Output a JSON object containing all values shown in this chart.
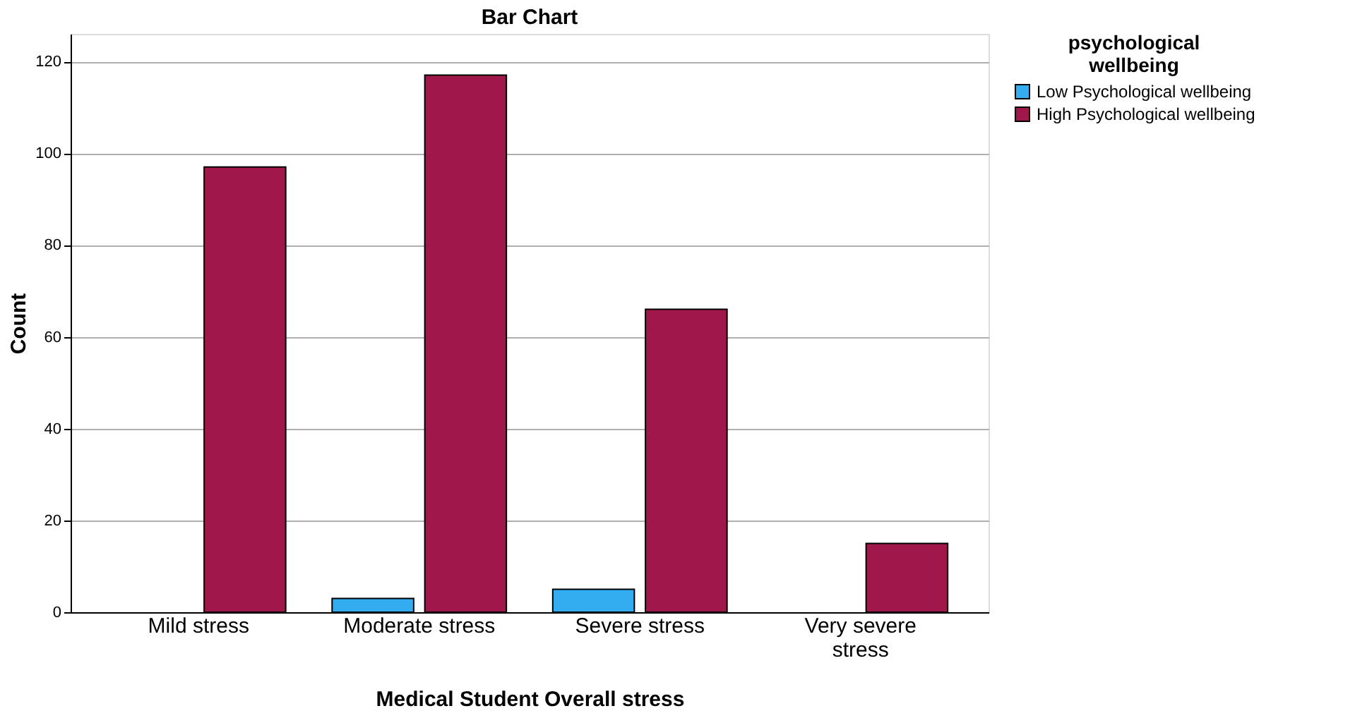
{
  "chart_data": {
    "type": "bar",
    "title": "Bar Chart",
    "xlabel": "Medical Student Overall stress",
    "ylabel": "Count",
    "legend_title": "psychological wellbeing",
    "categories": [
      "Mild stress",
      "Moderate stress",
      "Severe stress",
      "Very severe stress"
    ],
    "series": [
      {
        "name": "Low Psychological wellbeing",
        "color": "#33adf0",
        "values": [
          null,
          3,
          5,
          null
        ]
      },
      {
        "name": "High Psychological wellbeing",
        "color": "#a0174b",
        "values": [
          97,
          117,
          66,
          15
        ]
      }
    ],
    "ylim": [
      0,
      126
    ],
    "yticks": [
      0,
      20,
      40,
      60,
      80,
      100,
      120
    ],
    "grid": "y",
    "legend": "top right"
  }
}
